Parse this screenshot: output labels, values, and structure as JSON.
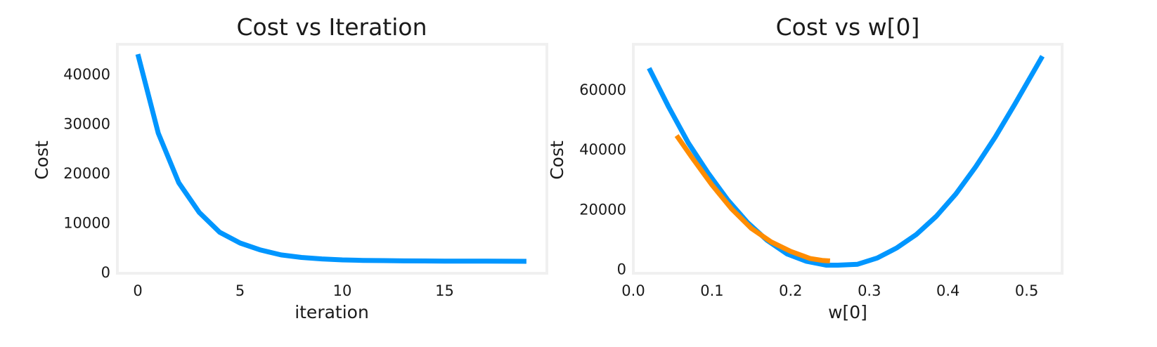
{
  "chart_data": [
    {
      "type": "line",
      "title": "Cost vs Iteration",
      "xlabel": "iteration",
      "ylabel": "Cost",
      "xlim": [
        -1,
        20
      ],
      "ylim": [
        -300,
        46000
      ],
      "xticks": [
        0,
        5,
        10,
        15
      ],
      "yticks": [
        0,
        10000,
        20000,
        30000,
        40000
      ],
      "grid": false,
      "series": [
        {
          "color": "#0096ff",
          "x": [
            0,
            1,
            2,
            3,
            4,
            5,
            6,
            7,
            8,
            9,
            10,
            11,
            12,
            13,
            14,
            15,
            16,
            17,
            18,
            19
          ],
          "y": [
            44000,
            28000,
            18000,
            12000,
            8000,
            5800,
            4400,
            3400,
            2900,
            2600,
            2400,
            2300,
            2250,
            2200,
            2180,
            2160,
            2150,
            2140,
            2130,
            2120
          ]
        }
      ]
    },
    {
      "type": "line",
      "title": "Cost vs w[0]",
      "xlabel": "w[0]",
      "ylabel": "Cost",
      "xlim": [
        0.0,
        0.545
      ],
      "ylim": [
        -1500,
        75000
      ],
      "xticks": [
        0.0,
        0.1,
        0.2,
        0.3,
        0.4,
        0.5
      ],
      "yticks": [
        0,
        20000,
        40000,
        60000
      ],
      "grid": false,
      "series": [
        {
          "color": "#0096ff",
          "x": [
            0.02,
            0.045,
            0.07,
            0.095,
            0.12,
            0.145,
            0.17,
            0.195,
            0.22,
            0.245,
            0.26,
            0.285,
            0.31,
            0.335,
            0.36,
            0.385,
            0.41,
            0.435,
            0.46,
            0.485,
            0.52
          ],
          "y": [
            67000,
            54000,
            42000,
            32000,
            23000,
            15500,
            9500,
            5000,
            2500,
            1200,
            1200,
            1500,
            3600,
            7000,
            11500,
            17500,
            25000,
            34000,
            44000,
            55000,
            71000
          ]
        },
        {
          "color": "#ff8c00",
          "x": [
            0.055,
            0.075,
            0.1,
            0.125,
            0.15,
            0.175,
            0.2,
            0.225,
            0.24,
            0.25
          ],
          "y": [
            44500,
            37000,
            28000,
            20000,
            13500,
            9000,
            5800,
            3400,
            2800,
            2600
          ]
        }
      ]
    }
  ]
}
